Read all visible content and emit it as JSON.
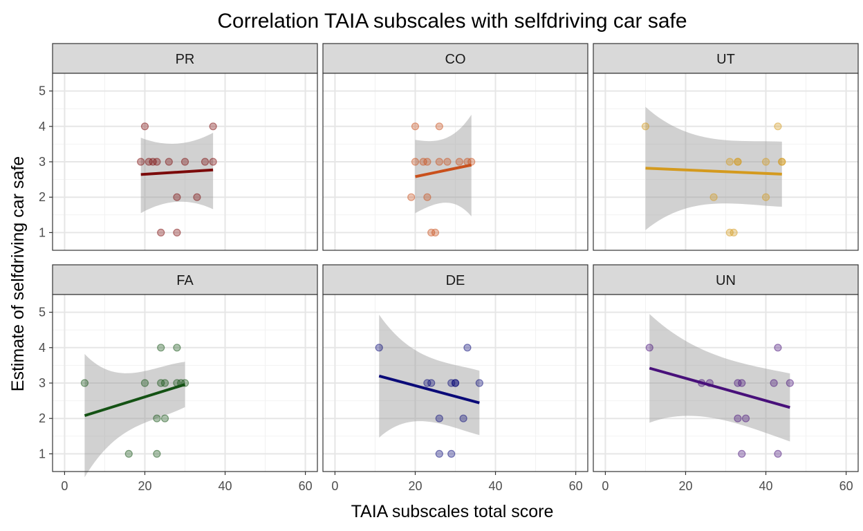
{
  "chart_data": {
    "type": "scatter",
    "title": "Correlation TAIA subscales with selfdriving car safe",
    "xlabel": "TAIA subscales total score",
    "ylabel": "Estimate of selfdriving car safe",
    "xlim": [
      -3,
      63
    ],
    "ylim": [
      0.5,
      5.5
    ],
    "x_ticks": [
      0,
      20,
      40,
      60
    ],
    "y_ticks": [
      1,
      2,
      3,
      4,
      5
    ],
    "grid": true,
    "layout": "facet grid 2 rows x 3 columns, shared axes",
    "panels": [
      {
        "name": "PR",
        "color": "#7b0a0a",
        "points": [
          [
            19,
            3
          ],
          [
            20,
            4
          ],
          [
            21,
            3
          ],
          [
            22,
            3
          ],
          [
            23,
            3
          ],
          [
            24,
            1
          ],
          [
            26,
            3
          ],
          [
            28,
            2
          ],
          [
            28,
            1
          ],
          [
            30,
            3
          ],
          [
            33,
            2
          ],
          [
            35,
            3
          ],
          [
            37,
            4
          ],
          [
            37,
            3
          ]
        ],
        "fit": {
          "x": [
            19,
            37
          ],
          "y": [
            2.64,
            2.77
          ]
        },
        "band": {
          "upper": [
            3.68,
            3.82
          ],
          "lower": [
            1.55,
            1.66
          ]
        }
      },
      {
        "name": "CO",
        "color": "#c9501c",
        "points": [
          [
            19,
            2
          ],
          [
            20,
            4
          ],
          [
            20,
            3
          ],
          [
            22,
            3
          ],
          [
            23,
            3
          ],
          [
            23,
            2
          ],
          [
            24,
            1
          ],
          [
            25,
            1
          ],
          [
            26,
            4
          ],
          [
            26,
            3
          ],
          [
            28,
            3
          ],
          [
            31,
            3
          ],
          [
            33,
            3
          ],
          [
            34,
            3
          ]
        ],
        "fit": {
          "x": [
            20,
            34
          ],
          "y": [
            2.58,
            2.91
          ]
        },
        "band": {
          "upper": [
            3.62,
            4.33
          ],
          "lower": [
            1.55,
            1.46
          ]
        }
      },
      {
        "name": "UT",
        "color": "#d49a1e",
        "points": [
          [
            10,
            4
          ],
          [
            27,
            2
          ],
          [
            31,
            3
          ],
          [
            31,
            1
          ],
          [
            32,
            1
          ],
          [
            33,
            3
          ],
          [
            33,
            3
          ],
          [
            40,
            3
          ],
          [
            40,
            2
          ],
          [
            43,
            4
          ],
          [
            44,
            3
          ],
          [
            44,
            3
          ]
        ],
        "fit": {
          "x": [
            10,
            44
          ],
          "y": [
            2.82,
            2.65
          ]
        },
        "band": {
          "upper": [
            4.55,
            3.57
          ],
          "lower": [
            1.07,
            1.73
          ]
        }
      },
      {
        "name": "FA",
        "color": "#145214",
        "points": [
          [
            5,
            3
          ],
          [
            16,
            1
          ],
          [
            20,
            3
          ],
          [
            23,
            2
          ],
          [
            23,
            1
          ],
          [
            24,
            4
          ],
          [
            24,
            3
          ],
          [
            25,
            3
          ],
          [
            25,
            2
          ],
          [
            28,
            4
          ],
          [
            28,
            3
          ],
          [
            29,
            3
          ],
          [
            30,
            3
          ]
        ],
        "fit": {
          "x": [
            5,
            30
          ],
          "y": [
            2.08,
            2.96
          ]
        },
        "band": {
          "upper": [
            3.82,
            3.6
          ],
          "lower": [
            0.34,
            2.32
          ]
        }
      },
      {
        "name": "DE",
        "color": "#0a0a78",
        "points": [
          [
            11,
            4
          ],
          [
            23,
            3
          ],
          [
            24,
            3
          ],
          [
            26,
            2
          ],
          [
            26,
            1
          ],
          [
            29,
            3
          ],
          [
            29,
            1
          ],
          [
            30,
            3
          ],
          [
            30,
            3
          ],
          [
            32,
            2
          ],
          [
            33,
            4
          ],
          [
            36,
            3
          ]
        ],
        "fit": {
          "x": [
            11,
            36
          ],
          "y": [
            3.2,
            2.44
          ]
        },
        "band": {
          "upper": [
            4.93,
            3.35
          ],
          "lower": [
            1.46,
            1.53
          ]
        }
      },
      {
        "name": "UN",
        "color": "#48107a",
        "points": [
          [
            11,
            4
          ],
          [
            24,
            3
          ],
          [
            26,
            3
          ],
          [
            33,
            3
          ],
          [
            33,
            2
          ],
          [
            34,
            3
          ],
          [
            34,
            1
          ],
          [
            35,
            2
          ],
          [
            42,
            3
          ],
          [
            43,
            4
          ],
          [
            43,
            1
          ],
          [
            46,
            3
          ]
        ],
        "fit": {
          "x": [
            11,
            46
          ],
          "y": [
            3.42,
            2.31
          ]
        },
        "band": {
          "upper": [
            4.95,
            3.27
          ],
          "lower": [
            1.88,
            1.35
          ]
        }
      }
    ]
  }
}
